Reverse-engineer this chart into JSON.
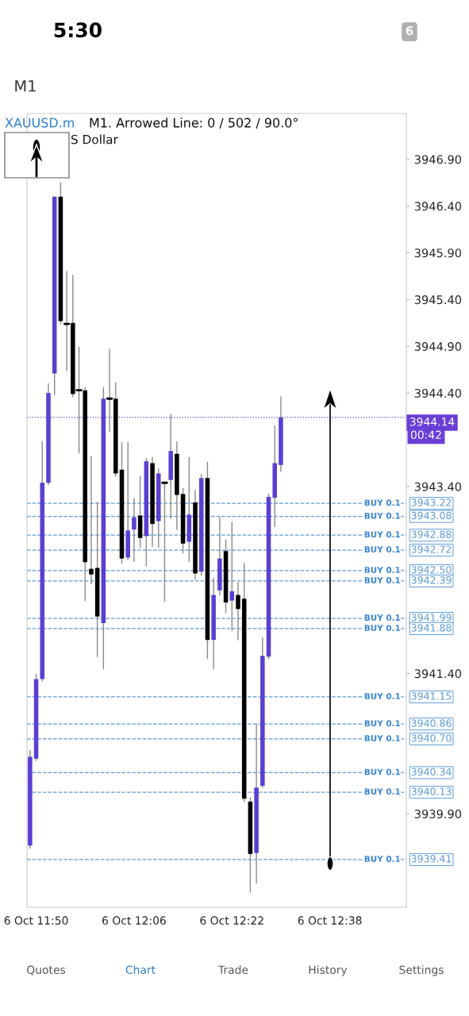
{
  "chart_data": {
    "type": "candlestick",
    "title": "XAUUSD.m",
    "subtitle": "M1. Arrowed Line: 0 / 502 / 90.0°",
    "annotations": [
      "S Dollar",
      "5:30",
      "6",
      "M1",
      "Quotes",
      "Chart",
      "Trade",
      "History",
      "Settings",
      "00:42",
      {
        "text": "BUY 0.1",
        "y": 3943.22
      },
      {
        "text": "BUY 0.1",
        "y": 3943.08
      },
      {
        "text": "BUY 0.1",
        "y": 3942.88
      },
      {
        "text": "BUY 0.1",
        "y": 3942.72
      },
      {
        "text": "BUY 0.1",
        "y": 3942.5
      },
      {
        "text": "BUY 0.1",
        "y": 3942.39
      },
      {
        "text": "BUY 0.1",
        "y": 3941.99
      },
      {
        "text": "BUY 0.1",
        "y": 3941.88
      },
      {
        "text": "BUY 0.1",
        "y": 3941.15
      },
      {
        "text": "BUY 0.1",
        "y": 3940.86
      },
      {
        "text": "BUY 0.1",
        "y": 3940.7
      },
      {
        "text": "BUY 0.1",
        "y": 3940.34
      },
      {
        "text": "BUY 0.1",
        "y": 3940.13
      },
      {
        "text": "BUY 0.1",
        "y": 3939.41
      }
    ],
    "categories": [
      null,
      "6 Oct 11:50",
      null,
      null,
      null,
      null,
      null,
      null,
      null,
      null,
      null,
      null,
      null,
      null,
      null,
      null,
      null,
      "6 Oct 12:06",
      null,
      null,
      null,
      null,
      null,
      null,
      null,
      null,
      null,
      null,
      null,
      null,
      null,
      null,
      null,
      "6 Oct 12:22",
      null,
      null,
      null,
      null,
      null,
      null,
      null,
      null,
      null,
      null,
      null,
      null,
      null,
      null,
      null,
      "6 Oct 12:38",
      null,
      null,
      null,
      null,
      null,
      null,
      null,
      null,
      null,
      null,
      null,
      null
    ],
    "ohlc": [
      [
        3939.56,
        3940.58,
        3939.53,
        3940.51
      ],
      [
        3940.49,
        3941.39,
        3940.47,
        3941.34
      ],
      [
        3941.34,
        3943.88,
        3941.32,
        3943.44
      ],
      [
        3943.44,
        3944.5,
        3943.42,
        3944.4
      ],
      [
        3944.61,
        3946.5,
        3944.38,
        3946.5
      ],
      [
        3946.5,
        3946.65,
        3945.14,
        3945.17
      ],
      [
        3945.14,
        3945.7,
        3944.64,
        3945.14
      ],
      [
        3945.15,
        3945.66,
        3944.36,
        3944.39
      ],
      [
        3944.43,
        3944.89,
        3943.76,
        3944.43
      ],
      [
        3944.43,
        3944.46,
        3942.18,
        3942.59
      ],
      [
        3942.52,
        3943.72,
        3942.36,
        3942.46
      ],
      [
        3942.53,
        3943.23,
        3941.58,
        3942.01
      ],
      [
        3941.94,
        3944.46,
        3941.45,
        3944.34
      ],
      [
        3944.34,
        3944.87,
        3943.99,
        3944.34
      ],
      [
        3944.34,
        3944.51,
        3943.51,
        3943.54
      ],
      [
        3943.58,
        3943.87,
        3942.58,
        3942.63
      ],
      [
        3942.64,
        3943.87,
        3942.62,
        3942.93
      ],
      [
        3942.94,
        3943.27,
        3942.6,
        3943.07
      ],
      [
        3943.09,
        3943.51,
        3942.75,
        3942.85
      ],
      [
        3942.87,
        3943.7,
        3942.55,
        3943.67
      ],
      [
        3943.65,
        3943.71,
        3942.76,
        3943.0
      ],
      [
        3943.03,
        3943.59,
        3942.75,
        3943.54
      ],
      [
        3943.44,
        3943.44,
        3942.17,
        3943.44
      ],
      [
        3943.47,
        3944.17,
        3943.06,
        3943.78
      ],
      [
        3943.75,
        3943.88,
        3942.94,
        3943.31
      ],
      [
        3943.32,
        3943.38,
        3942.69,
        3942.79
      ],
      [
        3942.81,
        3943.71,
        3942.6,
        3943.1
      ],
      [
        3943.23,
        3943.36,
        3942.41,
        3942.47
      ],
      [
        3942.49,
        3943.53,
        3942.45,
        3943.49
      ],
      [
        3943.49,
        3943.66,
        3941.56,
        3941.76
      ],
      [
        3941.76,
        3942.42,
        3941.45,
        3942.24
      ],
      [
        3942.29,
        3943.07,
        3942.24,
        3942.63
      ],
      [
        3942.71,
        3942.83,
        3942.05,
        3942.16
      ],
      [
        3942.18,
        3943.02,
        3941.86,
        3942.28
      ],
      [
        3942.24,
        3942.37,
        3941.76,
        3942.09
      ],
      [
        3942.2,
        3942.58,
        3940.03,
        3940.06
      ],
      [
        3940.03,
        3940.07,
        3939.06,
        3939.47
      ],
      [
        3939.48,
        3940.86,
        3939.16,
        3940.18
      ],
      [
        3940.2,
        3941.78,
        3940.18,
        3941.59
      ],
      [
        3941.58,
        3943.32,
        3941.56,
        3943.29
      ],
      [
        3943.28,
        3944.05,
        3942.97,
        3943.65
      ],
      [
        3943.63,
        3944.36,
        3943.56,
        3944.14
      ],
      null,
      null,
      null,
      null,
      null,
      null,
      null,
      null,
      null,
      null,
      null,
      null,
      null,
      null,
      null,
      null,
      null,
      null,
      null,
      null
    ],
    "colors": [
      "#5b3fd1",
      "#5b3fd1",
      "#5b3fd1",
      "#5b3fd1",
      "#5b3fd1",
      "#000000",
      "#000000",
      "#000000",
      "#000000",
      "#000000",
      "#000000",
      "#000000",
      "#5b3fd1",
      "#000000",
      "#000000",
      "#000000",
      "#5b3fd1",
      "#5b3fd1",
      "#000000",
      "#5b3fd1",
      "#000000",
      "#5b3fd1",
      "#000000",
      "#5b3fd1",
      "#000000",
      "#000000",
      "#5b3fd1",
      "#000000",
      "#5b3fd1",
      "#000000",
      "#5b3fd1",
      "#5b3fd1",
      "#000000",
      "#5b3fd1",
      "#000000",
      "#000000",
      "#000000",
      "#5b3fd1",
      "#5b3fd1",
      "#5b3fd1",
      "#5b3fd1",
      "#5b3fd1",
      null,
      null,
      null,
      null,
      null,
      null,
      null,
      null,
      null,
      null,
      null,
      null,
      null,
      null,
      null,
      null,
      null,
      null,
      null,
      null
    ],
    "ylim": [
      3938.9,
      3947.39
    ],
    "yticks": [
      {
        "value": 3939.9,
        "label": "3939.90"
      },
      {
        "value": 3941.4,
        "label": "3941.40"
      },
      {
        "value": 3943.4,
        "label": "3943.40"
      },
      {
        "value": 3944.4,
        "label": "3944.40"
      },
      {
        "value": 3944.9,
        "label": "3944.90"
      },
      {
        "value": 3945.4,
        "label": "3945.40"
      },
      {
        "value": 3945.9,
        "label": "3945.90"
      },
      {
        "value": 3946.4,
        "label": "3946.40"
      },
      {
        "value": 3946.9,
        "label": "3946.90"
      }
    ],
    "ref_lines": [
      {
        "axis": "y",
        "value": 3944.14,
        "label": "3944.14",
        "color": "#6a3fd6",
        "line_style": "dotted"
      },
      {
        "axis": "y",
        "value": 3943.22,
        "label": "3943.22",
        "color": "#5b9bd5",
        "line_style": "dashed"
      },
      {
        "axis": "y",
        "value": 3943.08,
        "label": "3943.08",
        "color": "#5b9bd5",
        "line_style": "dashed"
      },
      {
        "axis": "y",
        "value": 3942.88,
        "label": "3942.88",
        "color": "#5b9bd5",
        "line_style": "dashed"
      },
      {
        "axis": "y",
        "value": 3942.72,
        "label": "3942.72",
        "color": "#5b9bd5",
        "line_style": "dashed"
      },
      {
        "axis": "y",
        "value": 3942.5,
        "label": "3942.50",
        "color": "#5b9bd5",
        "line_style": "dashed"
      },
      {
        "axis": "y",
        "value": 3942.39,
        "label": "3942.39",
        "color": "#5b9bd5",
        "line_style": "dashed"
      },
      {
        "axis": "y",
        "value": 3941.99,
        "label": "3941.99",
        "color": "#5b9bd5",
        "line_style": "dashed"
      },
      {
        "axis": "y",
        "value": 3941.88,
        "label": "3941.88",
        "color": "#5b9bd5",
        "line_style": "dashed"
      },
      {
        "axis": "y",
        "value": 3941.15,
        "label": "3941.15",
        "color": "#5b9bd5",
        "line_style": "dashed"
      },
      {
        "axis": "y",
        "value": 3940.86,
        "label": "3940.86",
        "color": "#5b9bd5",
        "line_style": "dashed"
      },
      {
        "axis": "y",
        "value": 3940.7,
        "label": "3940.70",
        "color": "#5b9bd5",
        "line_style": "dashed"
      },
      {
        "axis": "y",
        "value": 3940.34,
        "label": "3940.34",
        "color": "#5b9bd5",
        "line_style": "dashed"
      },
      {
        "axis": "y",
        "value": 3940.13,
        "label": "3940.13",
        "color": "#5b9bd5",
        "line_style": "dashed"
      },
      {
        "axis": "y",
        "value": 3939.41,
        "label": "3939.41",
        "color": "#5b9bd5",
        "line_style": "dashed"
      }
    ]
  }
}
